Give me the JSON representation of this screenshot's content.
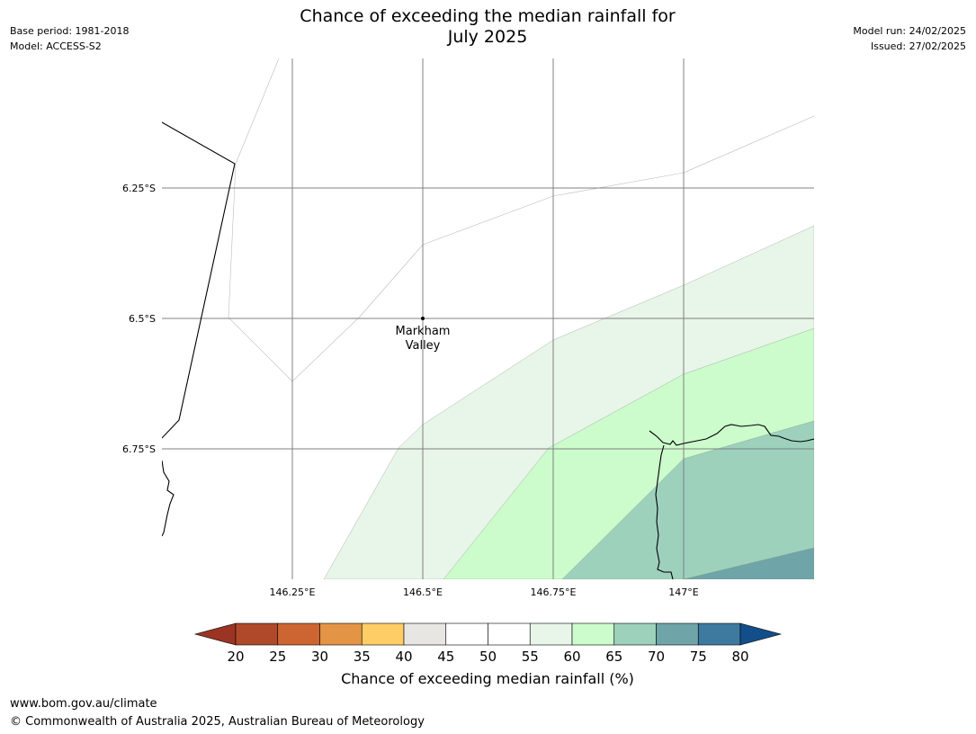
{
  "title_line1": "Chance of exceeding the median rainfall for",
  "title_line2": "July 2025",
  "base_period": "Base period: 1981-2018",
  "model": "Model: ACCESS-S2",
  "model_run": "Model run: 24/02/2025",
  "issued": "Issued: 27/02/2025",
  "map": {
    "lat_labels": [
      "6.25°S",
      "6.5°S",
      "6.75°S"
    ],
    "lon_labels": [
      "146.25°E",
      "146.5°E",
      "146.75°E",
      "147°E"
    ],
    "place_label_line1": "Markham",
    "place_label_line2": "Valley",
    "colors": {
      "band_55_60": "#e8f5e9",
      "band_60_65": "#ccfbcc",
      "band_65_70": "#9dd1bb",
      "band_70_75": "#6fa5a8",
      "gridline": "#808080",
      "coastline": "#000000"
    }
  },
  "colorbar": {
    "label": "Chance of exceeding median rainfall (%)",
    "ticks": [
      "20",
      "25",
      "30",
      "35",
      "40",
      "45",
      "50",
      "55",
      "60",
      "65",
      "70",
      "75",
      "80"
    ],
    "under_color": "#9b3423",
    "over_color": "#124f8a",
    "colors": [
      "#b0492a",
      "#cd6533",
      "#e39545",
      "#ffcd66",
      "#e8e6e3",
      "#ffffff",
      "#ffffff",
      "#e8f5e9",
      "#ccfbcc",
      "#9dd1bb",
      "#6fa5a8",
      "#3e7aa0"
    ]
  },
  "footer_url": "www.bom.gov.au/climate",
  "footer_copyright": "© Commonwealth of Australia 2025, Australian Bureau of Meteorology"
}
